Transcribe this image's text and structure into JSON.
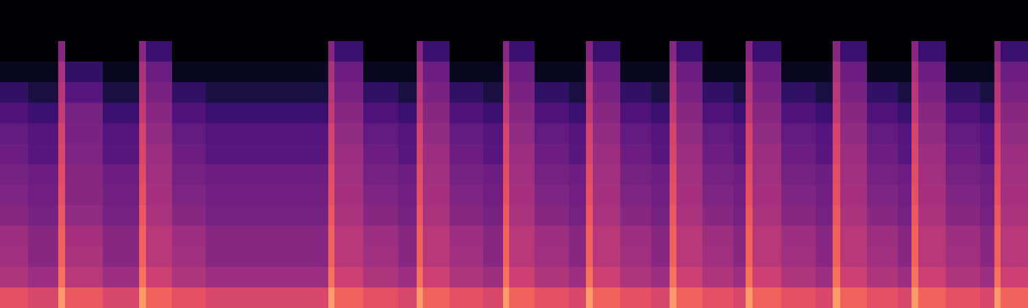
{
  "chart_data": {
    "type": "spectrogram",
    "color": "magma",
    "tick_labels": false,
    "xlim": [
      0,
      10
    ],
    "ylim": [
      0,
      15
    ],
    "zlim": [
      -85,
      0
    ],
    "x": [
      0,
      0.27,
      0.57,
      0.63,
      1.0,
      1.35,
      1.42,
      1.67,
      2.0,
      3.19,
      3.25,
      3.53,
      3.87,
      4.05,
      4.11,
      4.37,
      4.7,
      4.89,
      4.95,
      5.2,
      5.53,
      5.7,
      5.77,
      6.03,
      6.33,
      6.51,
      6.58,
      6.83,
      7.13,
      7.25,
      7.32,
      7.6,
      7.93,
      8.1,
      8.17,
      8.43,
      8.73,
      8.87,
      8.93,
      9.2,
      9.53,
      9.67,
      9.73,
      10.0
    ],
    "y": [
      0,
      1,
      2,
      3,
      4,
      5,
      6,
      7,
      8,
      9,
      10,
      11,
      12,
      13,
      14,
      15
    ],
    "cells": [
      [
        -32,
        -44,
        -47,
        -48,
        -52,
        -54,
        -56,
        -58,
        -60,
        -64,
        -70,
        -80,
        -85,
        -85,
        -85
      ],
      [
        -35,
        -48,
        -52,
        -52,
        -56,
        -57,
        -58,
        -62,
        -63,
        -68,
        -75,
        -80,
        -85,
        -85,
        -85
      ],
      [
        -18,
        -25,
        -28,
        -28,
        -30,
        -32,
        -33,
        -35,
        -36,
        -40,
        -42,
        -45,
        -52,
        -85,
        -85
      ],
      [
        -30,
        -42,
        -45,
        -46,
        -50,
        -52,
        -52,
        -54,
        -55,
        -56,
        -62,
        -70,
        -85,
        -85,
        -85
      ],
      [
        -35,
        -48,
        -52,
        -52,
        -56,
        -57,
        -58,
        -62,
        -63,
        -68,
        -75,
        -80,
        -85,
        -85,
        -85
      ],
      [
        -18,
        -25,
        -28,
        -28,
        -30,
        -32,
        -33,
        -35,
        -36,
        -40,
        -42,
        -45,
        -52,
        -85,
        -85
      ],
      [
        -28,
        -38,
        -42,
        -42,
        -45,
        -46,
        -47,
        -48,
        -50,
        -52,
        -55,
        -58,
        -68,
        -85,
        -85
      ],
      [
        -32,
        -44,
        -47,
        -48,
        -52,
        -54,
        -56,
        -58,
        -60,
        -64,
        -70,
        -80,
        -85,
        -85,
        -85
      ],
      [
        -35,
        -48,
        -52,
        -52,
        -56,
        -57,
        -58,
        -62,
        -63,
        -68,
        -75,
        -80,
        -85,
        -85,
        -85
      ],
      [
        -18,
        -25,
        -28,
        -28,
        -30,
        -32,
        -33,
        -35,
        -36,
        -40,
        -42,
        -45,
        -52,
        -85,
        -85
      ],
      [
        -28,
        -38,
        -42,
        -42,
        -45,
        -46,
        -47,
        -48,
        -50,
        -52,
        -55,
        -58,
        -68,
        -85,
        -85
      ],
      [
        -32,
        -44,
        -47,
        -48,
        -52,
        -54,
        -56,
        -58,
        -60,
        -64,
        -70,
        -80,
        -85,
        -85,
        -85
      ],
      [
        -35,
        -48,
        -52,
        -52,
        -56,
        -57,
        -58,
        -62,
        -63,
        -68,
        -75,
        -80,
        -85,
        -85,
        -85
      ],
      [
        -18,
        -25,
        -28,
        -28,
        -30,
        -32,
        -33,
        -35,
        -36,
        -40,
        -42,
        -45,
        -52,
        -85,
        -85
      ],
      [
        -28,
        -38,
        -42,
        -42,
        -45,
        -46,
        -47,
        -48,
        -50,
        -52,
        -55,
        -58,
        -68,
        -85,
        -85
      ],
      [
        -32,
        -44,
        -47,
        -48,
        -52,
        -54,
        -56,
        -58,
        -60,
        -64,
        -70,
        -80,
        -85,
        -85,
        -85
      ],
      [
        -35,
        -48,
        -52,
        -52,
        -56,
        -57,
        -58,
        -62,
        -63,
        -68,
        -75,
        -80,
        -85,
        -85,
        -85
      ],
      [
        -18,
        -25,
        -28,
        -28,
        -30,
        -32,
        -33,
        -35,
        -36,
        -40,
        -42,
        -45,
        -52,
        -85,
        -85
      ],
      [
        -28,
        -38,
        -42,
        -42,
        -45,
        -46,
        -47,
        -48,
        -50,
        -52,
        -55,
        -58,
        -68,
        -85,
        -85
      ],
      [
        -32,
        -44,
        -47,
        -48,
        -52,
        -54,
        -56,
        -58,
        -60,
        -64,
        -70,
        -80,
        -85,
        -85,
        -85
      ],
      [
        -35,
        -48,
        -52,
        -52,
        -56,
        -57,
        -58,
        -62,
        -63,
        -68,
        -75,
        -80,
        -85,
        -85,
        -85
      ],
      [
        -18,
        -25,
        -28,
        -28,
        -30,
        -32,
        -33,
        -35,
        -36,
        -40,
        -42,
        -45,
        -52,
        -85,
        -85
      ],
      [
        -28,
        -38,
        -42,
        -42,
        -45,
        -46,
        -47,
        -48,
        -50,
        -52,
        -55,
        -58,
        -68,
        -85,
        -85
      ],
      [
        -32,
        -44,
        -47,
        -48,
        -52,
        -54,
        -56,
        -58,
        -60,
        -64,
        -70,
        -80,
        -85,
        -85,
        -85
      ],
      [
        -35,
        -48,
        -52,
        -52,
        -56,
        -57,
        -58,
        -62,
        -63,
        -68,
        -75,
        -80,
        -85,
        -85,
        -85
      ],
      [
        -18,
        -25,
        -28,
        -28,
        -30,
        -32,
        -33,
        -35,
        -36,
        -40,
        -42,
        -45,
        -52,
        -85,
        -85
      ],
      [
        -28,
        -38,
        -42,
        -42,
        -45,
        -46,
        -47,
        -48,
        -50,
        -52,
        -55,
        -58,
        -68,
        -85,
        -85
      ],
      [
        -32,
        -44,
        -47,
        -48,
        -52,
        -54,
        -56,
        -58,
        -60,
        -64,
        -70,
        -80,
        -85,
        -85,
        -85
      ],
      [
        -35,
        -48,
        -52,
        -52,
        -56,
        -57,
        -58,
        -62,
        -63,
        -68,
        -75,
        -80,
        -85,
        -85,
        -85
      ],
      [
        -18,
        -25,
        -28,
        -28,
        -30,
        -32,
        -33,
        -35,
        -36,
        -40,
        -42,
        -45,
        -52,
        -85,
        -85
      ],
      [
        -28,
        -38,
        -42,
        -42,
        -45,
        -46,
        -47,
        -48,
        -50,
        -52,
        -55,
        -58,
        -68,
        -85,
        -85
      ],
      [
        -32,
        -44,
        -47,
        -48,
        -52,
        -54,
        -56,
        -58,
        -60,
        -64,
        -70,
        -80,
        -85,
        -85,
        -85
      ],
      [
        -35,
        -48,
        -52,
        -52,
        -56,
        -57,
        -58,
        -62,
        -63,
        -68,
        -75,
        -80,
        -85,
        -85,
        -85
      ],
      [
        -18,
        -25,
        -28,
        -28,
        -30,
        -32,
        -33,
        -35,
        -36,
        -40,
        -42,
        -45,
        -52,
        -85,
        -85
      ],
      [
        -28,
        -38,
        -42,
        -42,
        -45,
        -46,
        -47,
        -48,
        -50,
        -52,
        -55,
        -58,
        -68,
        -85,
        -85
      ],
      [
        -32,
        -44,
        -47,
        -48,
        -52,
        -54,
        -56,
        -58,
        -60,
        -64,
        -70,
        -80,
        -85,
        -85,
        -85
      ],
      [
        -35,
        -48,
        -52,
        -52,
        -56,
        -57,
        -58,
        -62,
        -63,
        -68,
        -75,
        -80,
        -85,
        -85,
        -85
      ],
      [
        -18,
        -25,
        -28,
        -28,
        -30,
        -32,
        -33,
        -35,
        -36,
        -40,
        -42,
        -45,
        -52,
        -85,
        -85
      ],
      [
        -28,
        -38,
        -42,
        -42,
        -45,
        -46,
        -47,
        -48,
        -50,
        -52,
        -55,
        -58,
        -68,
        -85,
        -85
      ],
      [
        -32,
        -44,
        -47,
        -48,
        -52,
        -54,
        -56,
        -58,
        -60,
        -64,
        -70,
        -80,
        -85,
        -85,
        -85
      ],
      [
        -35,
        -48,
        -52,
        -52,
        -56,
        -57,
        -58,
        -62,
        -63,
        -68,
        -75,
        -80,
        -85,
        -85,
        -85
      ],
      [
        -18,
        -25,
        -28,
        -28,
        -30,
        -32,
        -33,
        -35,
        -36,
        -40,
        -42,
        -45,
        -52,
        -85,
        -85
      ],
      [
        -28,
        -38,
        -42,
        -42,
        -45,
        -46,
        -47,
        -48,
        -50,
        -52,
        -55,
        -58,
        -68,
        -85,
        -85
      ]
    ]
  }
}
